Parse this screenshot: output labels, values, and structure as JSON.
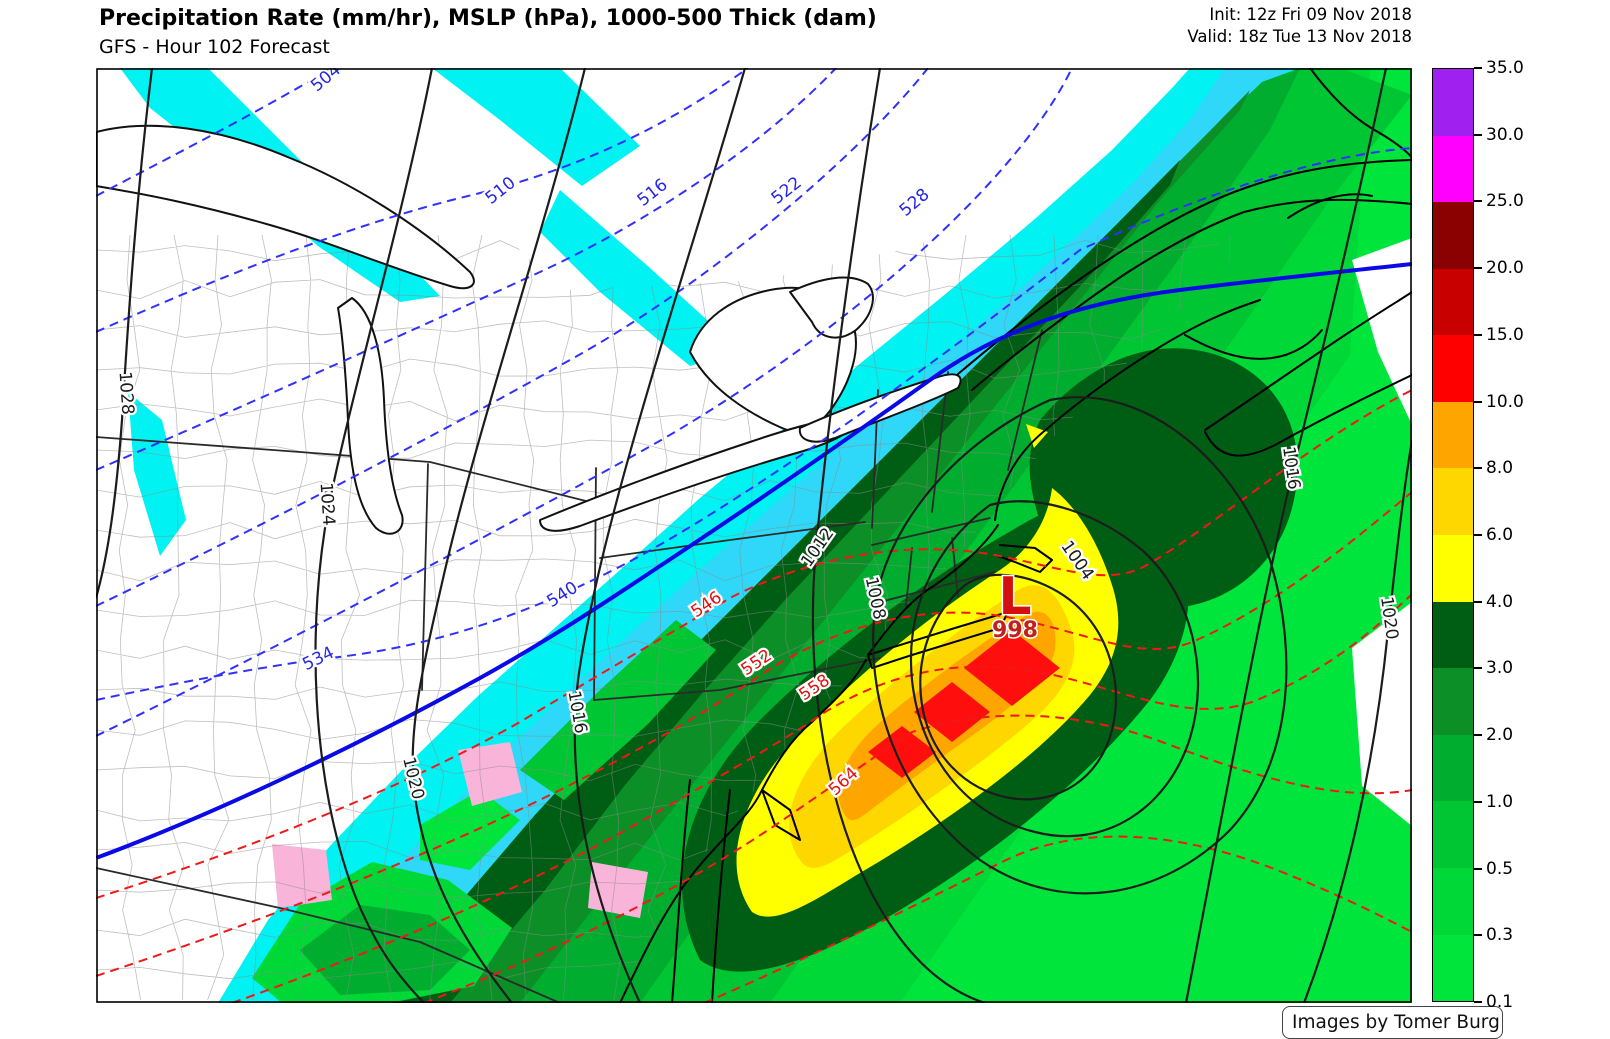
{
  "header": {
    "title": "Precipitation Rate (mm/hr), MSLP (hPa), 1000-500 Thick (dam)",
    "subtitle": "GFS - Hour 102 Forecast",
    "init_line": "Init: 12z Fri 09 Nov 2018",
    "valid_line": "Valid: 18z Tue 13 Nov 2018"
  },
  "colorbar": {
    "tick_labels": [
      "35.0",
      "30.0",
      "25.0",
      "20.0",
      "15.0",
      "10.0",
      "8.0",
      "6.0",
      "4.0",
      "3.0",
      "2.0",
      "1.0",
      "0.5",
      "0.3",
      "0.1"
    ],
    "segments": [
      {
        "range": "30.0-35.0",
        "color": "#A020F0"
      },
      {
        "range": "25.0-30.0",
        "color": "#FF00FF"
      },
      {
        "range": "20.0-25.0",
        "color": "#8B0000"
      },
      {
        "range": "15.0-20.0",
        "color": "#C80000"
      },
      {
        "range": "10.0-15.0",
        "color": "#FF0000"
      },
      {
        "range": "8.0-10.0",
        "color": "#FFA500"
      },
      {
        "range": "6.0-8.0",
        "color": "#FFD700"
      },
      {
        "range": "4.0-6.0",
        "color": "#FFFF00"
      },
      {
        "range": "3.0-4.0",
        "color": "#005E14"
      },
      {
        "range": "2.0-3.0",
        "color": "#0C8F26"
      },
      {
        "range": "1.0-2.0",
        "color": "#00AD2E"
      },
      {
        "range": "0.5-1.0",
        "color": "#00C634"
      },
      {
        "range": "0.3-0.5",
        "color": "#00D838"
      },
      {
        "range": "0.1-0.3",
        "color": "#00E53C"
      }
    ]
  },
  "map": {
    "low": {
      "symbol": "L",
      "pressure": "998",
      "color": "#D40F0F"
    },
    "isobar_labels": [
      {
        "text": "1028"
      },
      {
        "text": "1024"
      },
      {
        "text": "1020"
      },
      {
        "text": "1016"
      },
      {
        "text": "1012"
      },
      {
        "text": "1008"
      },
      {
        "text": "1004"
      },
      {
        "text": "1016"
      },
      {
        "text": "1020"
      }
    ],
    "thickness_blue_labels": [
      {
        "text": "504"
      },
      {
        "text": "510"
      },
      {
        "text": "516"
      },
      {
        "text": "522"
      },
      {
        "text": "528"
      },
      {
        "text": "534"
      },
      {
        "text": "540"
      }
    ],
    "thickness_red_labels": [
      {
        "text": "546"
      },
      {
        "text": "552"
      },
      {
        "text": "558"
      },
      {
        "text": "564"
      }
    ],
    "watermark": "Images by Tomer Burg",
    "precip_colors": {
      "rain_levels": [
        "#00E53C",
        "#00D838",
        "#00C634",
        "#00AD2E",
        "#0C8F26",
        "#005E14"
      ],
      "snow_levels": [
        "#00F2F2",
        "#2FD8F8",
        "#36AEF2",
        "#3E82EA"
      ],
      "ice": "#F8B4D9",
      "heavy_core": [
        "#FFFF00",
        "#FFD700",
        "#FFA500",
        "#FF0E0E"
      ]
    },
    "line_colors": {
      "mslp_contours": "#1C1C1C",
      "thickness_cold_dashed": "#3030FF",
      "thickness_warm_dashed": "#F01818",
      "rain_snow_540_line": "#0A0AE6"
    }
  }
}
